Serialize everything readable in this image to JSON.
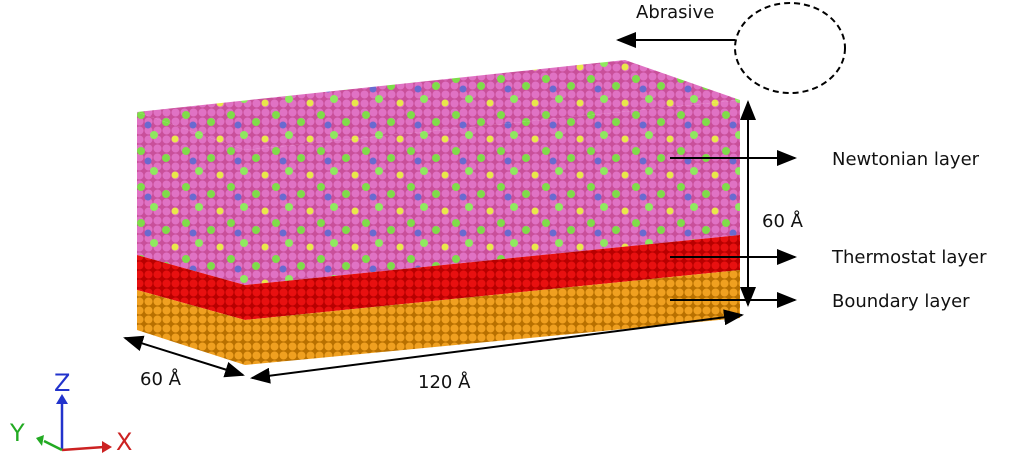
{
  "abrasive": "Abrasive",
  "layers": [
    "Newtonian layer",
    "Thermostat layer",
    "Boundary layer"
  ],
  "dimensions": {
    "height": "60 Å",
    "width": "60 Å",
    "length": "120 Å"
  },
  "axes": {
    "z": "Z",
    "y": "Y",
    "x": "X"
  }
}
